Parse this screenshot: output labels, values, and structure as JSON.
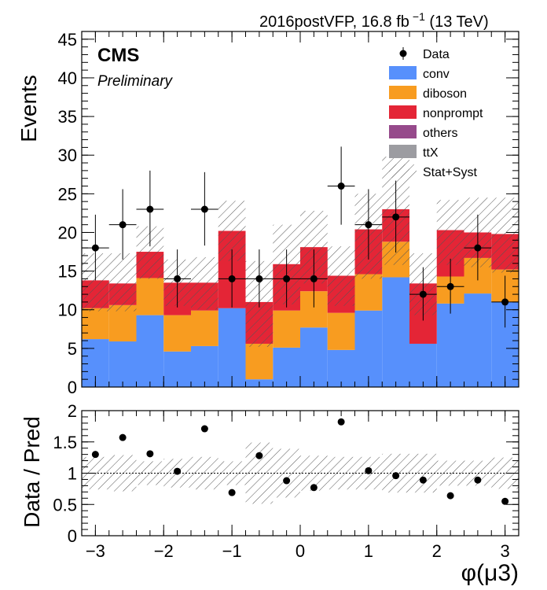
{
  "chart_data": {
    "type": "bar",
    "header": "2016postVFP, 16.8 fb",
    "header_sup": "−1",
    "header_energy": " (13 TeV)",
    "cms_label": "CMS",
    "cms_sublabel": "Preliminary",
    "ylabel": "Events",
    "ratio_ylabel": "Data / Pred",
    "xlabel": "φ(μ3)",
    "x_range": [
      -3.2,
      3.2
    ],
    "ylim": [
      0,
      46
    ],
    "ratio_ylim": [
      0,
      2
    ],
    "x_ticks": [
      "−3",
      "−2",
      "−1",
      "0",
      "1",
      "2",
      "3"
    ],
    "x_tick_values": [
      -3,
      -2,
      -1,
      0,
      1,
      2,
      3
    ],
    "y_ticks": [
      "0",
      "5",
      "10",
      "15",
      "20",
      "25",
      "30",
      "35",
      "40",
      "45"
    ],
    "y_tick_values": [
      0,
      5,
      10,
      15,
      20,
      25,
      30,
      35,
      40,
      45
    ],
    "ratio_y_ticks": [
      "0",
      "0.5",
      "1",
      "1.5",
      "2"
    ],
    "ratio_y_tick_values": [
      0,
      0.5,
      1,
      1.5,
      2
    ],
    "bin_edges": [
      -3.2,
      -2.8,
      -2.4,
      -2.0,
      -1.6,
      -1.2,
      -0.8,
      -0.4,
      0.0,
      0.4,
      0.8,
      1.2,
      1.6,
      2.0,
      2.4,
      2.8,
      3.2
    ],
    "series": [
      {
        "name": "conv",
        "color": "#5790fc",
        "values": [
          6.2,
          5.9,
          9.3,
          4.6,
          5.3,
          10.2,
          1.0,
          5.1,
          7.7,
          4.8,
          9.9,
          14.2,
          5.6,
          10.8,
          12.1,
          11.0
        ]
      },
      {
        "name": "diboson",
        "color": "#f89c20",
        "values": [
          4.0,
          4.7,
          4.8,
          4.7,
          4.6,
          0.0,
          4.6,
          4.8,
          4.7,
          4.8,
          4.7,
          4.6,
          0.0,
          3.5,
          4.6,
          4.2
        ]
      },
      {
        "name": "nonprompt",
        "color": "#e42536",
        "values": [
          3.6,
          2.8,
          3.4,
          4.2,
          3.6,
          10.0,
          5.4,
          6.0,
          5.7,
          4.8,
          5.8,
          4.2,
          7.8,
          6.0,
          3.3,
          4.6
        ]
      },
      {
        "name": "others",
        "color": "#964a8b",
        "values": [
          0,
          0,
          0,
          0,
          0,
          0,
          0,
          0,
          0,
          0,
          0,
          0,
          0,
          0,
          0,
          0
        ]
      },
      {
        "name": "ttX",
        "color": "#9c9ca1",
        "values": [
          0,
          0,
          0,
          0,
          0,
          0,
          0,
          0,
          0,
          0,
          0,
          0,
          0,
          0,
          0,
          0
        ]
      }
    ],
    "uncertainty": {
      "name": "Stat+Syst",
      "up": [
        17.3,
        17.3,
        20.8,
        16.5,
        16.8,
        24.1,
        16.3,
        21.0,
        22.8,
        18.2,
        25.0,
        29.8,
        17.3,
        24.2,
        24.5,
        24.5
      ],
      "down": [
        9.8,
        9.8,
        14.0,
        10.5,
        10.0,
        16.3,
        5.2,
        10.7,
        13.4,
        10.5,
        14.0,
        15.8,
        9.3,
        15.8,
        15.5,
        14.8
      ]
    },
    "data": {
      "name": "Data",
      "x": [
        -3.0,
        -2.6,
        -2.2,
        -1.8,
        -1.4,
        -1.0,
        -0.6,
        -0.2,
        0.2,
        0.6,
        1.0,
        1.4,
        1.8,
        2.2,
        2.6,
        3.0
      ],
      "y": [
        18,
        21,
        23,
        14,
        23,
        14,
        14,
        14,
        14,
        26,
        21,
        22,
        12,
        13,
        18,
        11
      ],
      "err_up": [
        4.3,
        4.6,
        5.0,
        3.8,
        4.8,
        3.8,
        3.8,
        3.8,
        3.8,
        5.1,
        4.6,
        4.7,
        3.5,
        3.6,
        4.3,
        3.4
      ],
      "err_down": [
        4.2,
        4.5,
        4.8,
        3.7,
        4.7,
        3.7,
        3.7,
        3.7,
        3.7,
        5.0,
        4.5,
        4.6,
        3.4,
        3.5,
        4.2,
        3.3
      ]
    },
    "ratio": {
      "values": [
        1.3,
        1.57,
        1.31,
        1.03,
        1.71,
        0.69,
        1.28,
        0.88,
        0.77,
        1.82,
        1.04,
        0.96,
        0.89,
        0.64,
        0.89,
        0.55
      ],
      "unc_up": [
        1.26,
        1.29,
        1.19,
        1.23,
        1.26,
        1.19,
        1.49,
        1.39,
        1.28,
        1.26,
        1.26,
        1.31,
        1.31,
        1.2,
        1.2,
        1.25
      ],
      "unc_down": [
        0.74,
        0.71,
        0.81,
        0.77,
        0.74,
        0.81,
        0.51,
        0.61,
        0.72,
        0.74,
        0.74,
        0.69,
        0.69,
        0.8,
        0.8,
        0.75
      ],
      "reference_line": 1
    },
    "legend_placement": "top-right"
  }
}
